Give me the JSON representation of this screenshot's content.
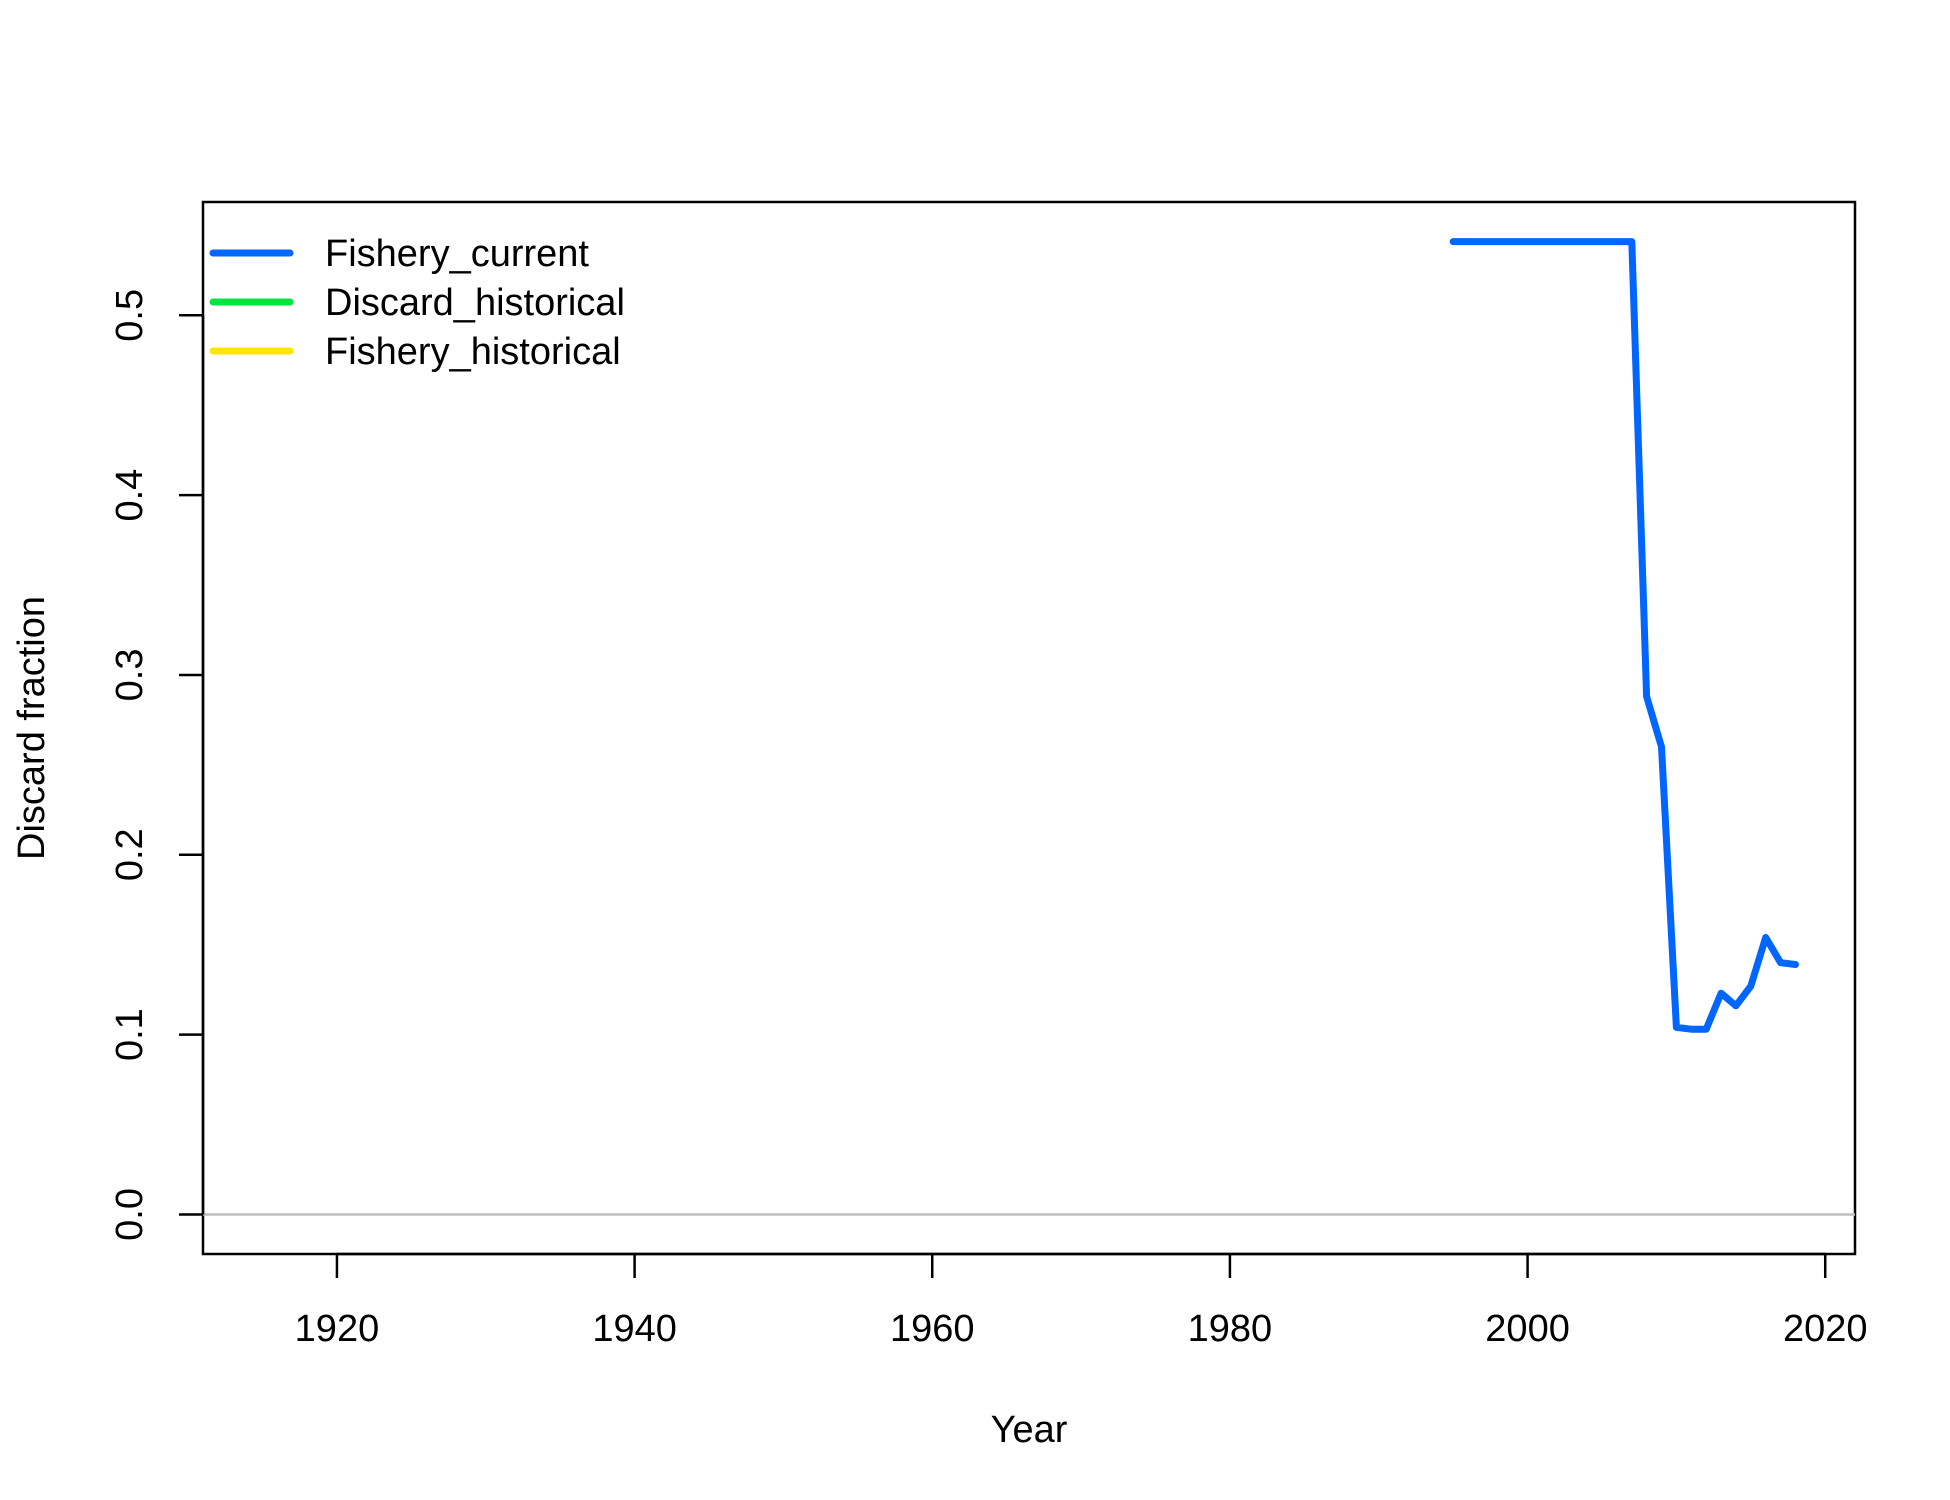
{
  "chart_data": {
    "type": "line",
    "title": "",
    "xlabel": "Year",
    "ylabel": "Discard fraction",
    "xlim": [
      1911,
      2022
    ],
    "ylim": [
      -0.022,
      0.563
    ],
    "xticks": [
      1920,
      1940,
      1960,
      1980,
      2000,
      2020
    ],
    "yticks": [
      0.0,
      0.1,
      0.2,
      0.3,
      0.4,
      0.5
    ],
    "xtick_labels": [
      "1920",
      "1940",
      "1960",
      "1980",
      "2000",
      "2020"
    ],
    "ytick_labels": [
      "0.0",
      "0.1",
      "0.2",
      "0.3",
      "0.4",
      "0.5"
    ],
    "reference_line": {
      "y": 0.0,
      "color": "#bebebe"
    },
    "legend_position": "top-left",
    "grid": false,
    "series": [
      {
        "name": "Fishery_current",
        "color": "#0066ff",
        "x": [
          1995,
          1996,
          1997,
          1998,
          1999,
          2000,
          2001,
          2002,
          2003,
          2004,
          2005,
          2006,
          2007,
          2008,
          2009,
          2010,
          2011,
          2012,
          2013,
          2014,
          2015,
          2016,
          2017,
          2018
        ],
        "y": [
          0.541,
          0.541,
          0.541,
          0.541,
          0.541,
          0.541,
          0.541,
          0.541,
          0.541,
          0.541,
          0.541,
          0.541,
          0.541,
          0.288,
          0.26,
          0.104,
          0.103,
          0.103,
          0.123,
          0.116,
          0.127,
          0.154,
          0.14,
          0.139
        ]
      },
      {
        "name": "Discard_historical",
        "color": "#00e640",
        "x": [],
        "y": []
      },
      {
        "name": "Fishery_historical",
        "color": "#ffe600",
        "x": [],
        "y": []
      }
    ]
  }
}
